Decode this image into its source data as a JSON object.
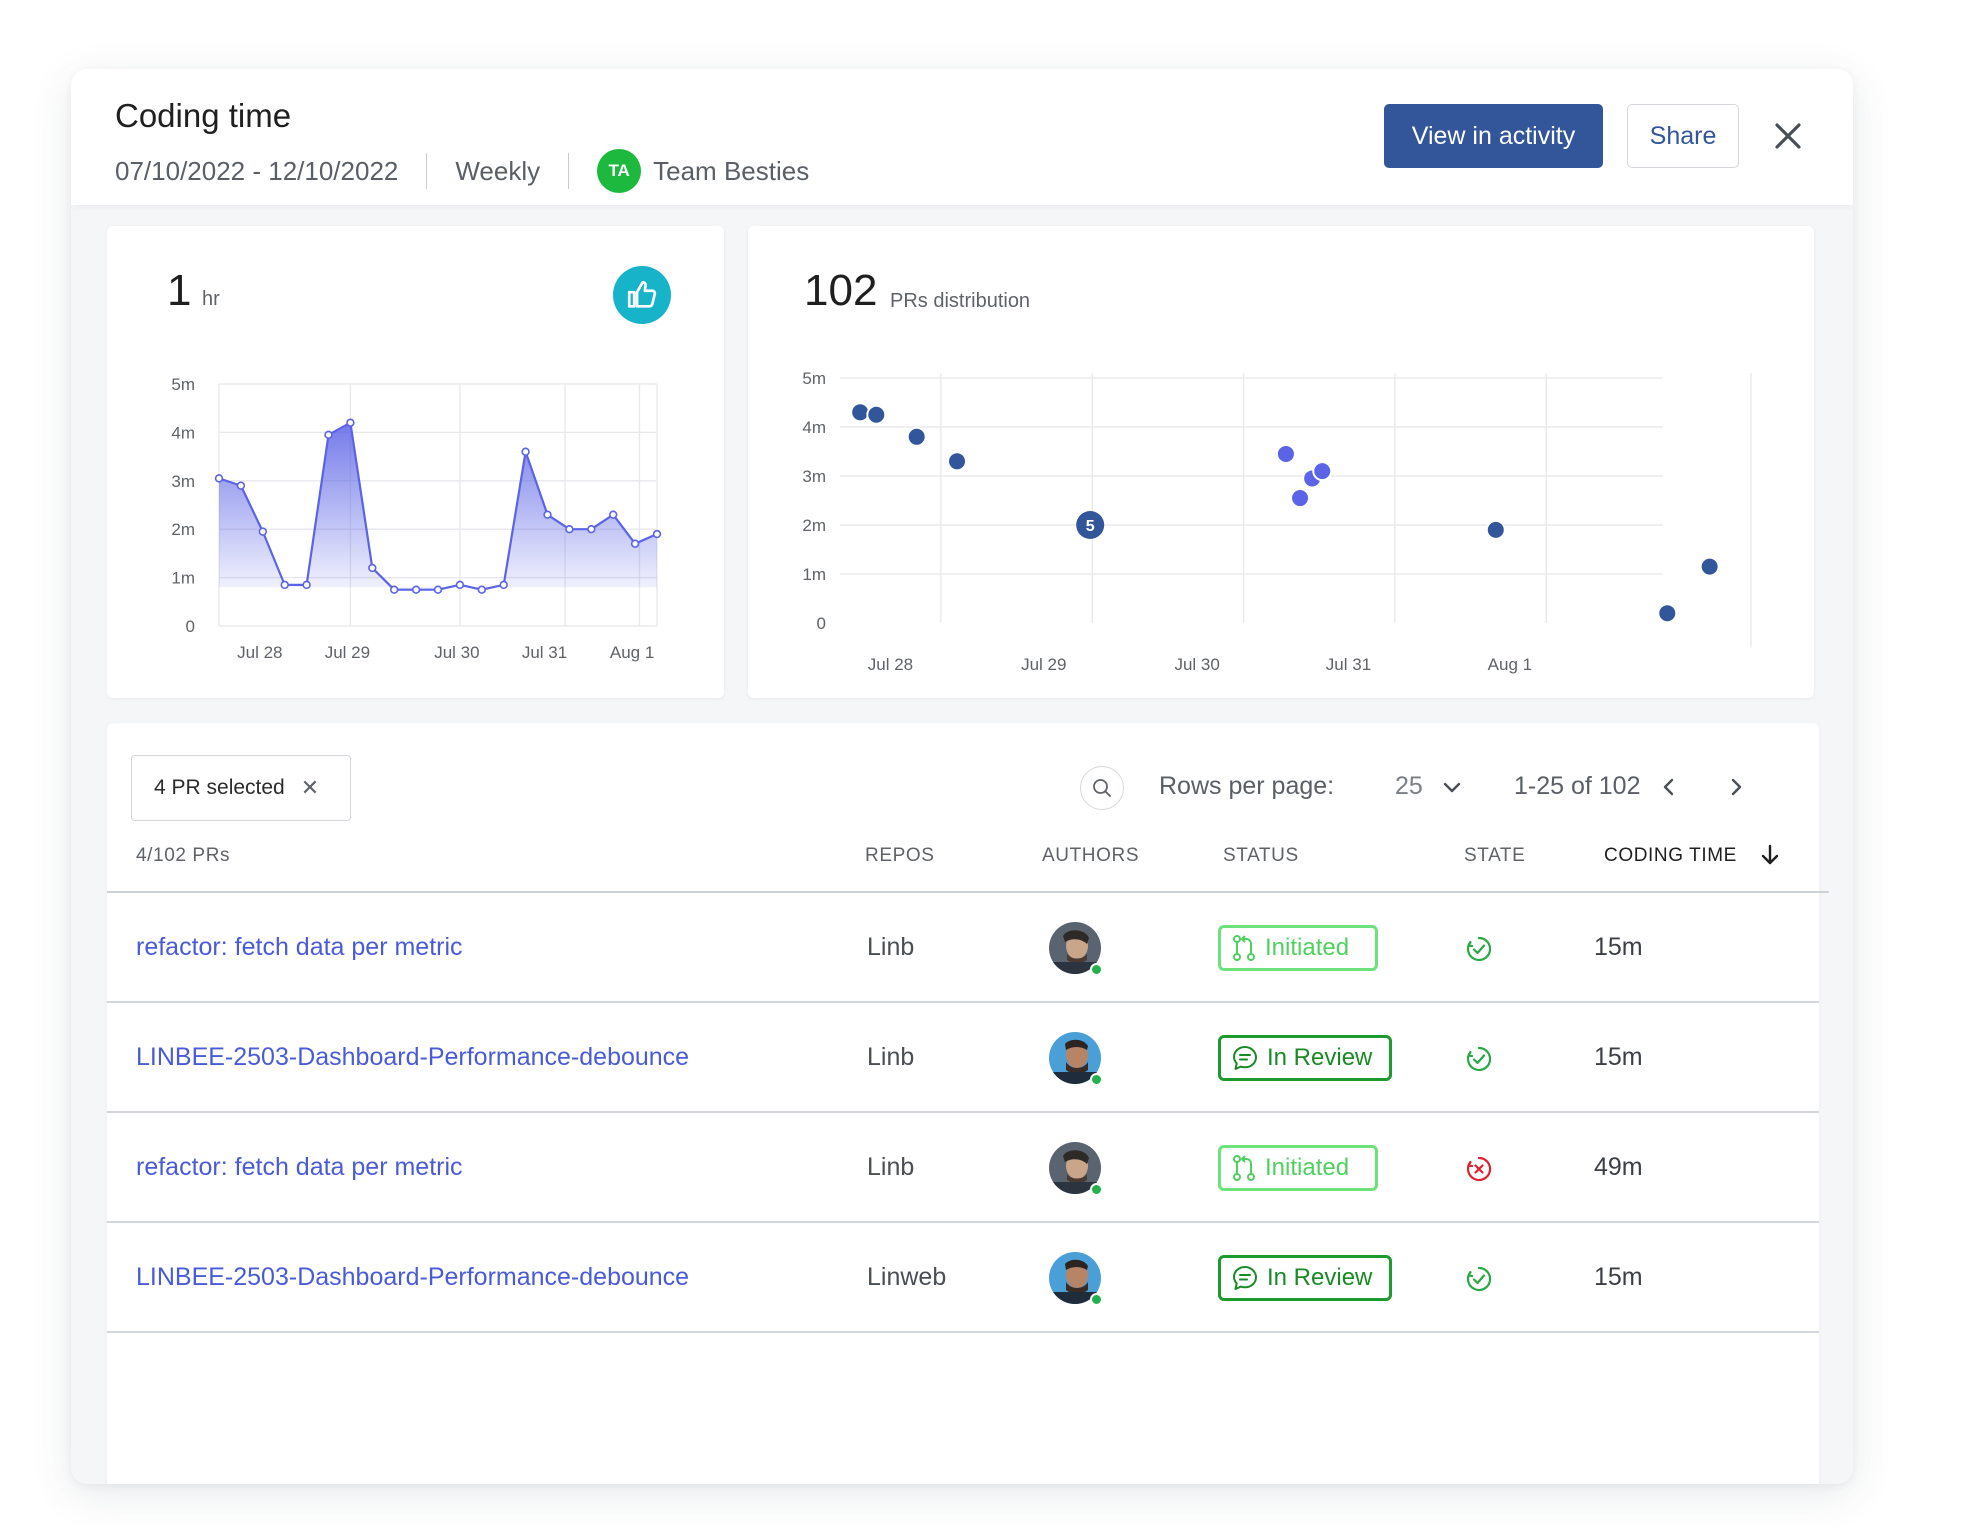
{
  "header": {
    "title": "Coding time",
    "date_range": "07/10/2022 - 12/10/2022",
    "period": "Weekly",
    "team_initials": "TA",
    "team_name": "Team Besties",
    "view_button": "View in activity",
    "share_button": "Share",
    "close_icon": "close-icon"
  },
  "summary_card": {
    "value": "1",
    "unit": "hr",
    "badge_icon": "thumbs-up-icon",
    "badge_color": "#16b3c9"
  },
  "distribution_card": {
    "value": "102",
    "label": "PRs distribution"
  },
  "chart_data": [
    {
      "type": "area",
      "yticks": [
        "0",
        "1m",
        "2m",
        "3m",
        "4m",
        "5m"
      ],
      "xticks": [
        "Jul 28",
        "Jul 29",
        "Jul 30",
        "Jul 31",
        "Aug 1"
      ],
      "ylim": [
        0,
        5
      ],
      "xlim": [
        0,
        20
      ],
      "grid": true,
      "color": "#5b63e6",
      "series": [
        {
          "x": [
            0,
            1,
            2,
            3,
            4,
            5,
            6,
            7,
            8,
            9,
            10,
            11,
            12,
            13,
            14,
            15,
            16,
            17,
            18,
            19,
            20
          ],
          "values": [
            3.05,
            2.9,
            1.95,
            0.85,
            0.85,
            3.95,
            4.2,
            1.2,
            0.75,
            0.75,
            0.75,
            0.85,
            0.75,
            0.85,
            3.6,
            2.3,
            2.0,
            2.0,
            2.3,
            1.7,
            1.9
          ]
        }
      ]
    },
    {
      "type": "scatter",
      "yticks": [
        "0",
        "1m",
        "2m",
        "3m",
        "4m",
        "5m"
      ],
      "xticks": [
        "Jul 28",
        "Jul 29",
        "Jul 30",
        "Jul 31",
        "Aug 1"
      ],
      "ylim": [
        0,
        5
      ],
      "xlim": [
        27.75,
        32.25
      ],
      "grid": true,
      "series": [
        {
          "color": "#33569b",
          "x": [
            27.85,
            27.93,
            28.13,
            28.33,
            31.0,
            31.85,
            32.06
          ],
          "y": [
            4.3,
            4.25,
            3.8,
            3.3,
            1.9,
            0.2,
            1.15
          ]
        },
        {
          "color": "#5b63e6",
          "x": [
            29.96,
            30.09,
            30.03,
            30.14
          ],
          "y": [
            3.45,
            2.95,
            2.55,
            3.1
          ]
        },
        {
          "color": "#33569b",
          "cluster": true,
          "label": "5",
          "x": [
            28.99
          ],
          "y": [
            2.0
          ]
        }
      ]
    }
  ],
  "table": {
    "selected_chip": "4 PR selected",
    "search_icon": "search-icon",
    "rows_per_page_label": "Rows per page:",
    "rows_per_page_value": "25",
    "page_range": "1-25 of 102",
    "count_label": "4/102 PRs",
    "columns": {
      "repos": "REPOS",
      "authors": "AUTHORS",
      "status": "STATUS",
      "state": "STATE",
      "coding_time": "CODING TIME"
    },
    "rows": [
      {
        "title": "refactor: fetch data per metric",
        "repo": "Linb",
        "status": "Initiated",
        "state": "approved",
        "coding_time": "15m"
      },
      {
        "title": "LINBEE-2503-Dashboard-Performance-debounce",
        "repo": "Linb",
        "status": "In Review",
        "state": "approved",
        "coding_time": "15m"
      },
      {
        "title": "refactor: fetch data per metric",
        "repo": "Linb",
        "status": "Initiated",
        "state": "rejected",
        "coding_time": "49m"
      },
      {
        "title": "LINBEE-2503-Dashboard-Performance-debounce",
        "repo": "Linweb",
        "status": "In Review",
        "state": "approved",
        "coding_time": "15m"
      }
    ]
  }
}
